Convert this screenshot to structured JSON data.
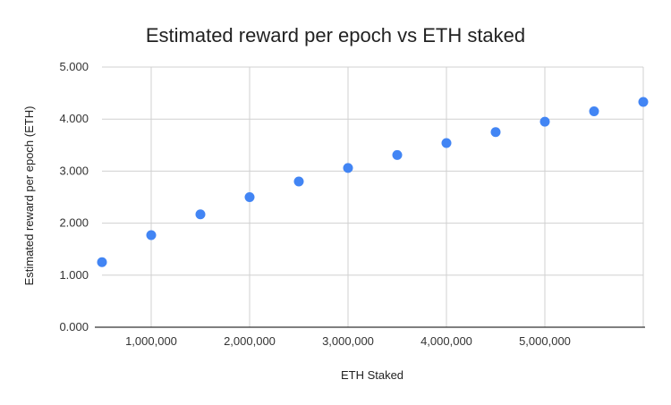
{
  "chart_data": {
    "type": "scatter",
    "title": "Estimated reward per epoch vs ETH staked",
    "xlabel": "ETH Staked",
    "ylabel": "Estimated reward per epoch (ETH)",
    "xlim": [
      500000,
      6000000
    ],
    "ylim": [
      0,
      5
    ],
    "x_ticks": [
      1000000,
      2000000,
      3000000,
      4000000,
      5000000
    ],
    "x_tick_labels": [
      "1,000,000",
      "2,000,000",
      "3,000,000",
      "4,000,000",
      "5,000,000"
    ],
    "y_ticks": [
      0,
      1,
      2,
      3,
      4,
      5
    ],
    "y_tick_labels": [
      "0.000",
      "1.000",
      "2.000",
      "3.000",
      "4.000",
      "5.000"
    ],
    "grid": true,
    "legend": "none",
    "series": [
      {
        "color": "#4285f4",
        "x": [
          500000,
          1000000,
          1500000,
          2000000,
          2500000,
          3000000,
          3500000,
          4000000,
          4500000,
          5000000,
          5500000,
          6000000
        ],
        "y": [
          1.25,
          1.77,
          2.17,
          2.5,
          2.8,
          3.06,
          3.31,
          3.54,
          3.75,
          3.95,
          4.15,
          4.33
        ]
      }
    ]
  }
}
